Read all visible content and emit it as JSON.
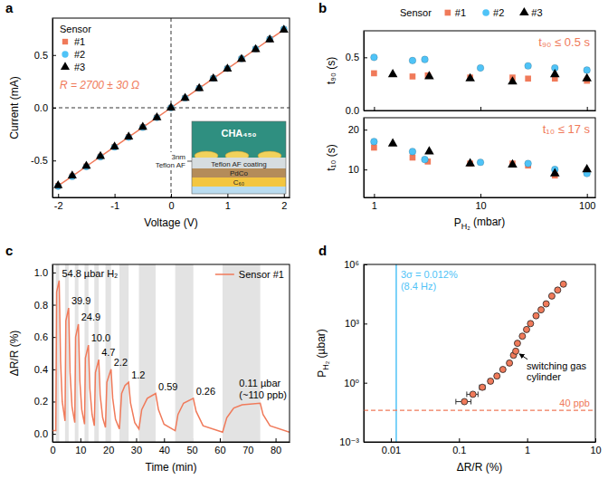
{
  "chart_data": [
    {
      "panel": "a",
      "type": "scatter",
      "xlabel": "Voltage (V)",
      "ylabel": "Current (mA)",
      "xlim": [
        -2.1,
        2.1
      ],
      "xticks": [
        -2,
        -1,
        0,
        1,
        2
      ],
      "ylim": [
        -0.85,
        0.85
      ],
      "yticks": [
        -0.5,
        {
          "value": 0,
          "label": "0.0"
        },
        0.5
      ],
      "legend": "upper left",
      "legend_title": "Sensor",
      "annotation": {
        "text": "R = 2700 ± 30 Ω",
        "color": "#f07a5a"
      },
      "hlines": [
        {
          "value": 0,
          "line_style": "dashed"
        }
      ],
      "vlines": [
        {
          "value": 0,
          "line_style": "dashed"
        }
      ],
      "inset": {
        "title": "CHA₄₅₀",
        "layers": [
          "Teflon AF coating",
          "PdCo",
          "C₆₀"
        ],
        "side_label": [
          "3nm",
          "Teflon AF"
        ]
      },
      "series": [
        {
          "name": "#1",
          "color": "#f07a5a",
          "marker": "square",
          "line_style": "solid",
          "x": [
            -2,
            -1.75,
            -1.5,
            -1.25,
            -1,
            -0.75,
            -0.5,
            -0.25,
            0,
            0.25,
            0.5,
            0.75,
            1,
            1.25,
            1.5,
            1.75,
            2
          ],
          "values": [
            -0.74,
            -0.65,
            -0.556,
            -0.463,
            -0.37,
            -0.278,
            -0.185,
            -0.093,
            0,
            0.093,
            0.185,
            0.278,
            0.37,
            0.463,
            0.556,
            0.65,
            0.74
          ]
        },
        {
          "name": "#2",
          "color": "#4fc3f7",
          "marker": "circle",
          "line_style": "none",
          "x": [
            -2,
            -1.75,
            -1.5,
            -1.25,
            -1,
            -0.75,
            -0.5,
            -0.25,
            0,
            0.25,
            0.5,
            0.75,
            1,
            1.25,
            1.5,
            1.75,
            2
          ],
          "values": [
            -0.745,
            -0.652,
            -0.559,
            -0.466,
            -0.373,
            -0.28,
            -0.186,
            -0.093,
            0,
            0.093,
            0.186,
            0.28,
            0.373,
            0.466,
            0.559,
            0.652,
            0.745
          ]
        },
        {
          "name": "#3",
          "color": "#000000",
          "marker": "triangle",
          "line_style": "none",
          "x": [
            -2,
            -1.75,
            -1.5,
            -1.25,
            -1,
            -0.75,
            -0.5,
            -0.25,
            0,
            0.25,
            0.5,
            0.75,
            1,
            1.25,
            1.5,
            1.75,
            2
          ],
          "values": [
            -0.737,
            -0.645,
            -0.553,
            -0.461,
            -0.369,
            -0.276,
            -0.184,
            -0.092,
            0,
            0.092,
            0.184,
            0.276,
            0.369,
            0.461,
            0.553,
            0.645,
            0.737
          ]
        }
      ]
    },
    {
      "panel": "b",
      "type": "scatter",
      "log": "x",
      "xlabel": "PH₂ (mbar)",
      "xlim": [
        0.8,
        120
      ],
      "xticks": [
        1,
        10,
        100
      ],
      "legend": "top",
      "legend_title": "Sensor",
      "subplots": [
        {
          "ylabel": "t₉₀ (s)",
          "ylim": [
            0,
            0.75
          ],
          "yticks": [
            {
              "value": 0,
              "label": "0.0"
            },
            0.5
          ],
          "annotation": {
            "text": "t₉₀ ≤ 0.5 s",
            "color": "#f07a5a"
          }
        },
        {
          "ylabel": "t₁₀ (s)",
          "ylim": [
            3,
            23
          ],
          "yticks": [
            10,
            20
          ],
          "annotation": {
            "text": "t₁₀ ≤ 17 s",
            "color": "#f07a5a"
          }
        }
      ],
      "series": [
        {
          "name": "#1",
          "color": "#f07a5a",
          "marker": "square",
          "x": [
            1,
            2.3,
            3.2,
            8,
            20,
            28,
            50,
            100
          ],
          "values": [
            [
              0.35,
              0.32,
              0.33,
              0.31,
              0.31,
              0.3,
              0.3,
              0.28
            ],
            [
              15.5,
              13,
              12,
              11.5,
              11.5,
              11,
              8.5,
              9.5
            ]
          ]
        },
        {
          "name": "#2",
          "color": "#4fc3f7",
          "marker": "circle",
          "x": [
            1,
            2.3,
            3,
            10,
            28,
            50,
            100
          ],
          "values": [
            [
              0.5,
              0.47,
              0.48,
              0.4,
              0.42,
              0.4,
              0.38
            ],
            [
              17,
              14.5,
              12.5,
              11.8,
              11.5,
              10,
              9
            ]
          ]
        },
        {
          "name": "#3",
          "color": "#000000",
          "marker": "triangle",
          "x": [
            1.5,
            3.3,
            8,
            20,
            50,
            100
          ],
          "values": [
            [
              0.34,
              0.32,
              0.3,
              0.27,
              0.34,
              0.3
            ],
            [
              16.5,
              14.5,
              11.5,
              11.2,
              9,
              10
            ]
          ]
        }
      ]
    },
    {
      "panel": "c",
      "type": "line",
      "xlabel": "Time (min)",
      "ylabel": "ΔR/R (%)",
      "xlim": [
        0,
        85
      ],
      "xticks": [
        0,
        10,
        20,
        30,
        40,
        50,
        60,
        70,
        80
      ],
      "ylim": [
        -0.05,
        1.05
      ],
      "yticks": [
        {
          "value": 0,
          "label": "0.0"
        },
        0.2,
        0.4,
        0.6,
        0.8,
        {
          "value": 1,
          "label": "1.0"
        }
      ],
      "legend": "upper right",
      "x": [
        0,
        1.2,
        1.5,
        2.4,
        2.9,
        3.5,
        4.5,
        4.8,
        5.8,
        6.3,
        7,
        8,
        8.3,
        9.3,
        9.8,
        10.5,
        11.5,
        11.8,
        12.9,
        13.4,
        14.2,
        15,
        15.4,
        16.6,
        17.1,
        18,
        19,
        19.5,
        21,
        21.6,
        22.6,
        24,
        24.8,
        26,
        27.3,
        28,
        29.5,
        31,
        32,
        34,
        37,
        38,
        40,
        44,
        45,
        47,
        50.5,
        51.5,
        54,
        61,
        62.5,
        65,
        68,
        74.5,
        75.5,
        78,
        85
      ],
      "series": [
        {
          "name": "Sensor #1",
          "color": "#f07a5a",
          "values": [
            0.02,
            0.02,
            0.88,
            0.95,
            0.45,
            0.2,
            0.08,
            0.7,
            0.78,
            0.38,
            0.17,
            0.07,
            0.6,
            0.68,
            0.33,
            0.15,
            0.06,
            0.47,
            0.55,
            0.28,
            0.12,
            0.05,
            0.38,
            0.46,
            0.24,
            0.1,
            0.04,
            0.32,
            0.4,
            0.22,
            0.09,
            0.03,
            0.25,
            0.3,
            0.32,
            0.19,
            0.07,
            0.03,
            0.15,
            0.22,
            0.25,
            0.15,
            0.06,
            0.02,
            0.12,
            0.19,
            0.22,
            0.14,
            0.05,
            0.01,
            0.1,
            0.16,
            0.18,
            0.19,
            0.12,
            0.05,
            0.01
          ]
        }
      ],
      "pulses": [
        {
          "start": 1.2,
          "end": 2.4,
          "label": "54.8 µbar H₂"
        },
        {
          "start": 4.5,
          "end": 5.8,
          "label": "39.9"
        },
        {
          "start": 8,
          "end": 9.3,
          "label": "24.9"
        },
        {
          "start": 11.5,
          "end": 12.9,
          "label": "10.0"
        },
        {
          "start": 15,
          "end": 16.6,
          "label": "4.7"
        },
        {
          "start": 19,
          "end": 21,
          "label": "2.2"
        },
        {
          "start": 24,
          "end": 27.3,
          "label": "1.2"
        },
        {
          "start": 31,
          "end": 37,
          "label": "0.59"
        },
        {
          "start": 44,
          "end": 50.5,
          "label": "0.26"
        },
        {
          "start": 61,
          "end": 74.5,
          "label": "0.11 µbar",
          "sublabel": "(~110 ppb)"
        }
      ]
    },
    {
      "panel": "d",
      "type": "scatter",
      "log": true,
      "xlabel": "ΔR/R (%)",
      "ylabel": "PH₂ (µbar)",
      "xlim": [
        0.004,
        10
      ],
      "xticks": [
        0.01,
        0.1,
        1,
        10
      ],
      "ylim": [
        0.001,
        1000000
      ],
      "yticks": [
        {
          "value": 0.001,
          "label": "10⁻³"
        },
        {
          "value": 1,
          "label": "10⁰"
        },
        {
          "value": 1000,
          "label": "10³"
        },
        {
          "value": 1000000,
          "label": "10⁶"
        }
      ],
      "series": [
        {
          "color": "#f07a5a",
          "marker": "circle",
          "x": [
            0.12,
            0.16,
            0.22,
            0.29,
            0.36,
            0.44,
            0.55,
            0.63,
            0.68,
            0.72,
            0.85,
            0.98,
            1.12,
            1.35,
            1.6,
            1.9,
            2.3,
            2.8,
            3.4
          ],
          "x_err": [
            0.03,
            0.03,
            0.02,
            0.02,
            0.02,
            0.02,
            0.03,
            0.03,
            0.03,
            0.03,
            0.03,
            0.03,
            0.04,
            0.04,
            0.05,
            0.05,
            0.06,
            0.07,
            0.08
          ],
          "values": [
            0.11,
            0.26,
            0.59,
            1.2,
            2.2,
            4.7,
            10,
            24.9,
            39.9,
            100,
            230,
            500,
            1000,
            2500,
            5000,
            10000,
            25000,
            50000,
            100000
          ]
        }
      ],
      "vlines": [
        {
          "value": 0.012,
          "label": "3σ = 0.012%",
          "sublabel": "(8.4 Hz)",
          "color": "#4fc3f7"
        }
      ],
      "hlines": [
        {
          "value": 0.04,
          "label": "40 ppb",
          "color": "#f07a5a",
          "line_style": "dashed"
        }
      ],
      "annotations": [
        {
          "text": "switching gas cylinder",
          "x": 0.68,
          "y": 39.9
        }
      ]
    }
  ]
}
